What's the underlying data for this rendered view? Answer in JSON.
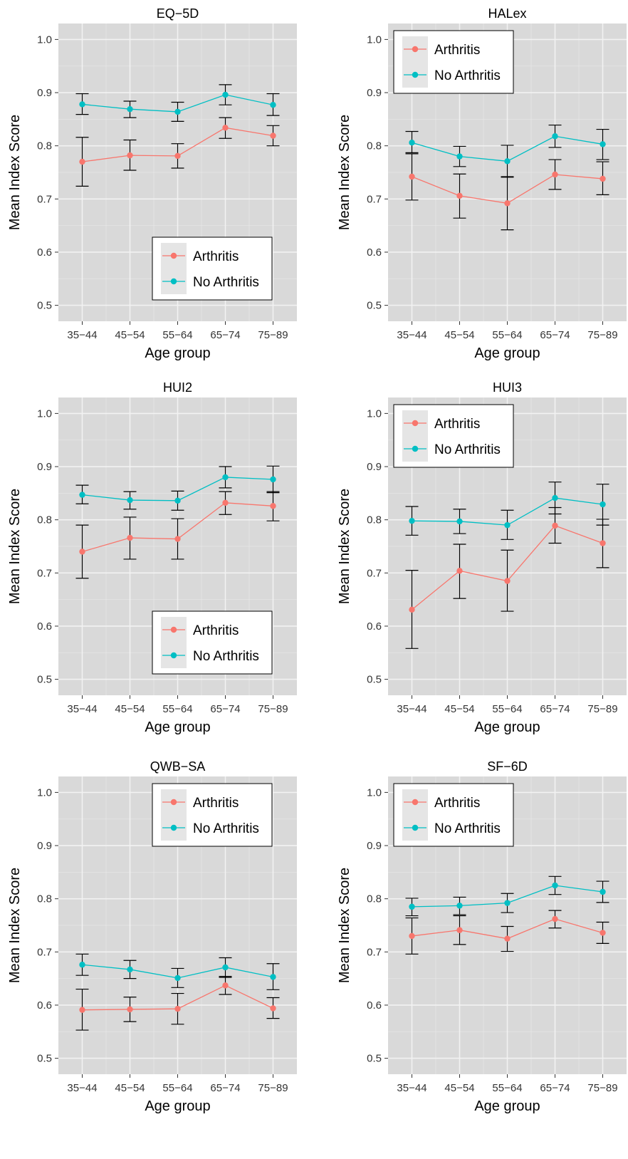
{
  "colors": {
    "arthritis": "#F8766D",
    "no_arthritis": "#00BFC4",
    "panel_bg": "#D9D9D9",
    "grid_major": "#F2F2F2",
    "grid_minor": "#E6E6E6",
    "errorbar": "#000000"
  },
  "chart_data": [
    {
      "type": "line",
      "title": "EQ−5D",
      "xlabel": "Age group",
      "ylabel": "Mean Index Score",
      "categories": [
        "35−44",
        "45−54",
        "55−64",
        "65−74",
        "75−89"
      ],
      "ylim": [
        0.47,
        1.03
      ],
      "yticks": [
        0.5,
        0.6,
        0.7,
        0.8,
        0.9,
        1.0
      ],
      "ytick_labels": [
        "0.5",
        "0.6",
        "0.7",
        "0.8",
        "0.9",
        "1.0"
      ],
      "grid": true,
      "legend": {
        "position": "bottom-right",
        "entries": [
          "Arthritis",
          "No Arthritis"
        ]
      },
      "series": [
        {
          "name": "Arthritis",
          "values": [
            0.77,
            0.782,
            0.781,
            0.834,
            0.819
          ],
          "lower": [
            0.724,
            0.754,
            0.758,
            0.814,
            0.8
          ],
          "upper": [
            0.816,
            0.811,
            0.804,
            0.853,
            0.838
          ]
        },
        {
          "name": "No Arthritis",
          "values": [
            0.878,
            0.869,
            0.864,
            0.896,
            0.877
          ],
          "lower": [
            0.859,
            0.853,
            0.846,
            0.877,
            0.857
          ],
          "upper": [
            0.898,
            0.884,
            0.882,
            0.915,
            0.898
          ]
        }
      ]
    },
    {
      "type": "line",
      "title": "HALex",
      "xlabel": "Age group",
      "ylabel": "Mean Index Score",
      "categories": [
        "35−44",
        "45−54",
        "55−64",
        "65−74",
        "75−89"
      ],
      "ylim": [
        0.47,
        1.03
      ],
      "yticks": [
        0.5,
        0.6,
        0.7,
        0.8,
        0.9,
        1.0
      ],
      "ytick_labels": [
        "0.5",
        "0.6",
        "0.7",
        "0.8",
        "0.9",
        "1.0"
      ],
      "grid": true,
      "legend": {
        "position": "top-left",
        "entries": [
          "Arthritis",
          "No Arthritis"
        ]
      },
      "series": [
        {
          "name": "Arthritis",
          "values": [
            0.742,
            0.706,
            0.692,
            0.746,
            0.738
          ],
          "lower": [
            0.698,
            0.664,
            0.642,
            0.718,
            0.708
          ],
          "upper": [
            0.785,
            0.747,
            0.742,
            0.774,
            0.77
          ]
        },
        {
          "name": "No Arthritis",
          "values": [
            0.806,
            0.78,
            0.771,
            0.818,
            0.803
          ],
          "lower": [
            0.787,
            0.761,
            0.741,
            0.797,
            0.774
          ],
          "upper": [
            0.827,
            0.799,
            0.801,
            0.839,
            0.831
          ]
        }
      ]
    },
    {
      "type": "line",
      "title": "HUI2",
      "xlabel": "Age group",
      "ylabel": "Mean Index Score",
      "categories": [
        "35−44",
        "45−54",
        "55−64",
        "65−74",
        "75−89"
      ],
      "ylim": [
        0.47,
        1.03
      ],
      "yticks": [
        0.5,
        0.6,
        0.7,
        0.8,
        0.9,
        1.0
      ],
      "ytick_labels": [
        "0.5",
        "0.6",
        "0.7",
        "0.8",
        "0.9",
        "1.0"
      ],
      "grid": true,
      "legend": {
        "position": "bottom-right",
        "entries": [
          "Arthritis",
          "No Arthritis"
        ]
      },
      "series": [
        {
          "name": "Arthritis",
          "values": [
            0.74,
            0.766,
            0.764,
            0.832,
            0.826
          ],
          "lower": [
            0.69,
            0.726,
            0.726,
            0.81,
            0.798
          ],
          "upper": [
            0.79,
            0.805,
            0.802,
            0.853,
            0.853
          ]
        },
        {
          "name": "No Arthritis",
          "values": [
            0.847,
            0.837,
            0.836,
            0.88,
            0.876
          ],
          "lower": [
            0.83,
            0.82,
            0.818,
            0.86,
            0.851
          ],
          "upper": [
            0.865,
            0.853,
            0.854,
            0.9,
            0.901
          ]
        }
      ]
    },
    {
      "type": "line",
      "title": "HUI3",
      "xlabel": "Age group",
      "ylabel": "Mean Index Score",
      "categories": [
        "35−44",
        "45−54",
        "55−64",
        "65−74",
        "75−89"
      ],
      "ylim": [
        0.47,
        1.03
      ],
      "yticks": [
        0.5,
        0.6,
        0.7,
        0.8,
        0.9,
        1.0
      ],
      "ytick_labels": [
        "0.5",
        "0.6",
        "0.7",
        "0.8",
        "0.9",
        "1.0"
      ],
      "grid": true,
      "legend": {
        "position": "top-left",
        "entries": [
          "Arthritis",
          "No Arthritis"
        ]
      },
      "series": [
        {
          "name": "Arthritis",
          "values": [
            0.631,
            0.704,
            0.685,
            0.789,
            0.756
          ],
          "lower": [
            0.558,
            0.652,
            0.628,
            0.756,
            0.71
          ],
          "upper": [
            0.705,
            0.754,
            0.743,
            0.823,
            0.801
          ]
        },
        {
          "name": "No Arthritis",
          "values": [
            0.798,
            0.797,
            0.79,
            0.841,
            0.829
          ],
          "lower": [
            0.771,
            0.774,
            0.763,
            0.811,
            0.79
          ],
          "upper": [
            0.825,
            0.82,
            0.818,
            0.871,
            0.867
          ]
        }
      ]
    },
    {
      "type": "line",
      "title": "QWB−SA",
      "xlabel": "Age group",
      "ylabel": "Mean Index Score",
      "categories": [
        "35−44",
        "45−54",
        "55−64",
        "65−74",
        "75−89"
      ],
      "ylim": [
        0.47,
        1.03
      ],
      "yticks": [
        0.5,
        0.6,
        0.7,
        0.8,
        0.9,
        1.0
      ],
      "ytick_labels": [
        "0.5",
        "0.6",
        "0.7",
        "0.8",
        "0.9",
        "1.0"
      ],
      "grid": true,
      "legend": {
        "position": "top-right",
        "entries": [
          "Arthritis",
          "No Arthritis"
        ]
      },
      "series": [
        {
          "name": "Arthritis",
          "values": [
            0.591,
            0.592,
            0.593,
            0.637,
            0.594
          ],
          "lower": [
            0.553,
            0.569,
            0.564,
            0.62,
            0.575
          ],
          "upper": [
            0.63,
            0.615,
            0.622,
            0.654,
            0.614
          ]
        },
        {
          "name": "No Arthritis",
          "values": [
            0.676,
            0.667,
            0.651,
            0.671,
            0.653
          ],
          "lower": [
            0.656,
            0.65,
            0.633,
            0.652,
            0.629
          ],
          "upper": [
            0.696,
            0.684,
            0.669,
            0.689,
            0.678
          ]
        }
      ]
    },
    {
      "type": "line",
      "title": "SF−6D",
      "xlabel": "Age group",
      "ylabel": "Mean Index Score",
      "categories": [
        "35−44",
        "45−54",
        "55−64",
        "65−74",
        "75−89"
      ],
      "ylim": [
        0.47,
        1.03
      ],
      "yticks": [
        0.5,
        0.6,
        0.7,
        0.8,
        0.9,
        1.0
      ],
      "ytick_labels": [
        "0.5",
        "0.6",
        "0.7",
        "0.8",
        "0.9",
        "1.0"
      ],
      "grid": true,
      "legend": {
        "position": "top-left",
        "entries": [
          "Arthritis",
          "No Arthritis"
        ]
      },
      "series": [
        {
          "name": "Arthritis",
          "values": [
            0.73,
            0.741,
            0.725,
            0.762,
            0.736
          ],
          "lower": [
            0.696,
            0.714,
            0.701,
            0.745,
            0.716
          ],
          "upper": [
            0.764,
            0.768,
            0.748,
            0.778,
            0.756
          ]
        },
        {
          "name": "No Arthritis",
          "values": [
            0.785,
            0.787,
            0.792,
            0.825,
            0.813
          ],
          "lower": [
            0.768,
            0.77,
            0.774,
            0.808,
            0.793
          ],
          "upper": [
            0.801,
            0.803,
            0.81,
            0.842,
            0.833
          ]
        }
      ]
    }
  ]
}
